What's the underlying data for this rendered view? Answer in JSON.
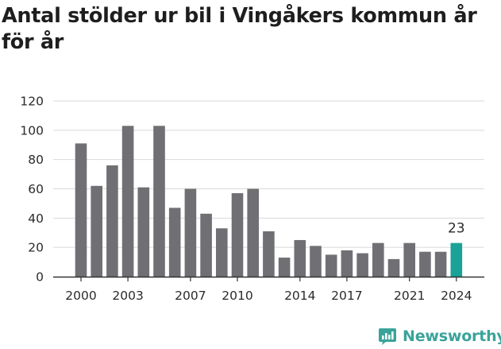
{
  "title": "Antal stölder ur bil i Vingåkers kommun år för år",
  "brand": {
    "name": "Newsworthy",
    "icon": "newsworthy-logo-icon"
  },
  "colors": {
    "bar": "#707074",
    "highlight": "#1aa296",
    "grid": "#d9d9d9",
    "axis": "#333333",
    "brand": "#3aa39a"
  },
  "chart_data": {
    "type": "bar",
    "title": "Antal stölder ur bil i Vingåkers kommun år för år",
    "xlabel": "",
    "ylabel": "",
    "categories": [
      "2000",
      "2001",
      "2002",
      "2003",
      "2004",
      "2005",
      "2006",
      "2007",
      "2008",
      "2009",
      "2010",
      "2011",
      "2012",
      "2013",
      "2014",
      "2015",
      "2016",
      "2017",
      "2018",
      "2019",
      "2020",
      "2021",
      "2022",
      "2023",
      "2024"
    ],
    "values": [
      91,
      62,
      76,
      103,
      61,
      103,
      47,
      60,
      43,
      33,
      57,
      60,
      31,
      13,
      25,
      21,
      15,
      18,
      16,
      23,
      12,
      23,
      17,
      17,
      23
    ],
    "x_tick_labels": [
      "2000",
      "2003",
      "2007",
      "2010",
      "2014",
      "2017",
      "2021",
      "2024"
    ],
    "y_ticks": [
      0,
      20,
      40,
      60,
      80,
      100,
      120
    ],
    "ylim": [
      0,
      120
    ],
    "grid": true,
    "highlight_category": "2024",
    "data_labels": [
      {
        "category": "2024",
        "text": "23"
      }
    ]
  }
}
